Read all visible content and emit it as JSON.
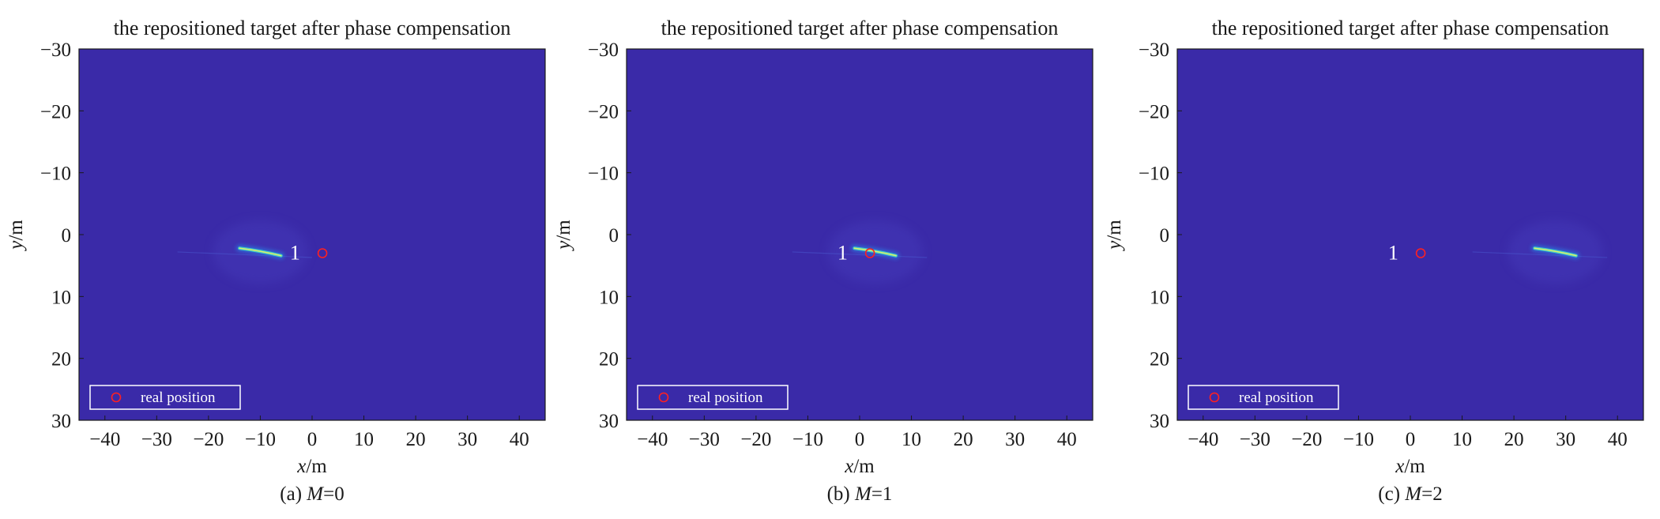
{
  "colors": {
    "background_field": "#3a2aa8",
    "axes_frame": "#1a1a1a",
    "streak_core": "#f0f060",
    "streak_mid": "#3fd0c8",
    "streak_outer": "#2a78e0",
    "marker": "#ff2020",
    "legend_border": "#ffffff",
    "legend_text": "#ffffff",
    "label_on_plot": "#ffffff"
  },
  "chart_data": [
    {
      "type": "heatmap",
      "title": "the repositioned target after phase compensation",
      "xlabel_var": "x",
      "xlabel_unit": "/m",
      "ylabel_var": "y",
      "ylabel_unit": "/m",
      "xlim": [
        -45,
        45
      ],
      "ylim": [
        -30,
        30
      ],
      "y_inverted": true,
      "xticks": [
        -40,
        -30,
        -20,
        -10,
        0,
        10,
        20,
        30,
        40
      ],
      "xtick_labels": [
        "−40",
        "−30",
        "−20",
        "−10",
        "0",
        "10",
        "20",
        "30",
        "40"
      ],
      "yticks": [
        -30,
        -20,
        -10,
        0,
        10,
        20,
        30
      ],
      "ytick_labels": [
        "−30",
        "−20",
        "−10",
        "0",
        "10",
        "20",
        "30"
      ],
      "grid": false,
      "legend": {
        "entries": [
          "real position"
        ],
        "location": "lower-left"
      },
      "real_position": {
        "x": 2,
        "y": 3
      },
      "target_label": {
        "text": "1",
        "x": -2,
        "y": 3
      },
      "streak": {
        "x_start": -14,
        "x_end": -6,
        "y_start": 2.2,
        "y_end": 3.4
      },
      "caption_prefix": "(a) ",
      "caption_var": "M",
      "caption_suffix": "=0"
    },
    {
      "type": "heatmap",
      "title": "the repositioned target after phase compensation",
      "xlabel_var": "x",
      "xlabel_unit": "/m",
      "ylabel_var": "y",
      "ylabel_unit": "/m",
      "xlim": [
        -45,
        45
      ],
      "ylim": [
        -30,
        30
      ],
      "y_inverted": true,
      "xticks": [
        -40,
        -30,
        -20,
        -10,
        0,
        10,
        20,
        30,
        40
      ],
      "xtick_labels": [
        "−40",
        "−30",
        "−20",
        "−10",
        "0",
        "10",
        "20",
        "30",
        "40"
      ],
      "yticks": [
        -30,
        -20,
        -10,
        0,
        10,
        20,
        30
      ],
      "ytick_labels": [
        "−30",
        "−20",
        "−10",
        "0",
        "10",
        "20",
        "30"
      ],
      "grid": false,
      "legend": {
        "entries": [
          "real position"
        ],
        "location": "lower-left"
      },
      "real_position": {
        "x": 2,
        "y": 3
      },
      "target_label": {
        "text": "1",
        "x": -2,
        "y": 3
      },
      "streak": {
        "x_start": -1,
        "x_end": 7,
        "y_start": 2.2,
        "y_end": 3.4
      },
      "caption_prefix": "(b) ",
      "caption_var": "M",
      "caption_suffix": "=1"
    },
    {
      "type": "heatmap",
      "title": "the repositioned target after phase compensation",
      "xlabel_var": "x",
      "xlabel_unit": "/m",
      "ylabel_var": "y",
      "ylabel_unit": "/m",
      "xlim": [
        -45,
        45
      ],
      "ylim": [
        -30,
        30
      ],
      "y_inverted": true,
      "xticks": [
        -40,
        -30,
        -20,
        -10,
        0,
        10,
        20,
        30,
        40
      ],
      "xtick_labels": [
        "−40",
        "−30",
        "−20",
        "−10",
        "0",
        "10",
        "20",
        "30",
        "40"
      ],
      "yticks": [
        -30,
        -20,
        -10,
        0,
        10,
        20,
        30
      ],
      "ytick_labels": [
        "−30",
        "−20",
        "−10",
        "0",
        "10",
        "20",
        "30"
      ],
      "grid": false,
      "legend": {
        "entries": [
          "real position"
        ],
        "location": "lower-left"
      },
      "real_position": {
        "x": 2,
        "y": 3
      },
      "target_label": {
        "text": "1",
        "x": -2,
        "y": 3
      },
      "streak": {
        "x_start": 24,
        "x_end": 32,
        "y_start": 2.2,
        "y_end": 3.4
      },
      "caption_prefix": "(c) ",
      "caption_var": "M",
      "caption_suffix": "=2"
    }
  ]
}
